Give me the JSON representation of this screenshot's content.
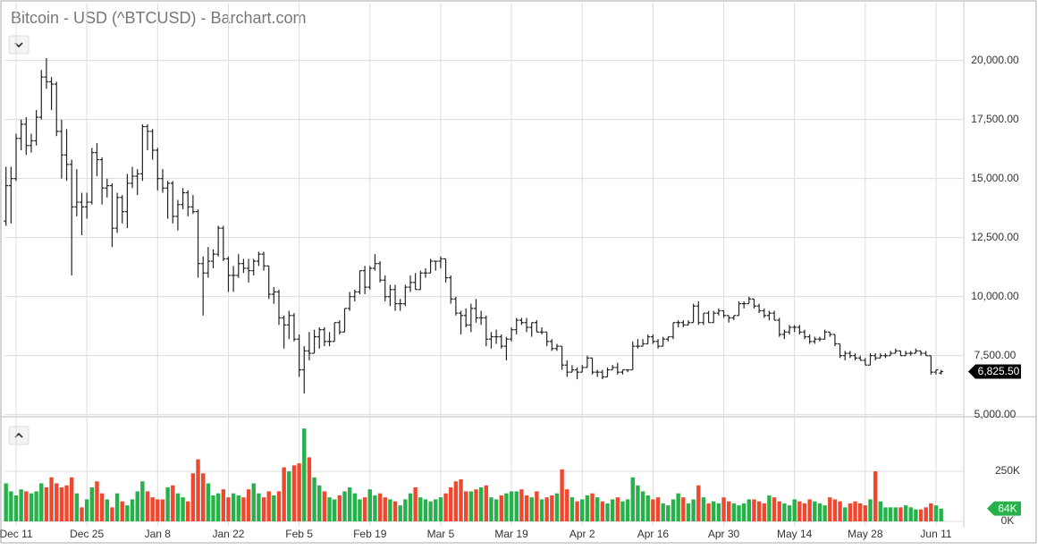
{
  "chart_data": {
    "type": "ohlc",
    "title": "Bitcoin - USD (^BTCUSD) - Barchart.com",
    "categories": [
      null,
      null,
      "Dec 11",
      null,
      null,
      null,
      null,
      null,
      null,
      null,
      null,
      null,
      null,
      null,
      null,
      null,
      "Dec 25",
      null,
      null,
      null,
      null,
      null,
      null,
      null,
      null,
      null,
      null,
      null,
      null,
      null,
      "Jan 8",
      null,
      null,
      null,
      null,
      null,
      null,
      null,
      null,
      null,
      null,
      null,
      null,
      null,
      "Jan 22",
      null,
      null,
      null,
      null,
      null,
      null,
      null,
      null,
      null,
      null,
      null,
      null,
      null,
      "Feb 5",
      null,
      null,
      null,
      null,
      null,
      null,
      null,
      null,
      null,
      null,
      null,
      null,
      null,
      "Feb 19",
      null,
      null,
      null,
      null,
      null,
      null,
      null,
      null,
      null,
      null,
      null,
      null,
      null,
      "Mar 5",
      null,
      null,
      null,
      null,
      null,
      null,
      null,
      null,
      null,
      null,
      null,
      null,
      null,
      "Mar 19",
      null,
      null,
      null,
      null,
      null,
      null,
      null,
      null,
      null,
      null,
      null,
      null,
      null,
      "Apr 2",
      null,
      null,
      null,
      null,
      null,
      null,
      null,
      null,
      null,
      null,
      null,
      null,
      null,
      "Apr 16",
      null,
      null,
      null,
      null,
      null,
      null,
      null,
      null,
      null,
      null,
      null,
      null,
      null,
      "Apr 30",
      null,
      null,
      null,
      null,
      null,
      null,
      null,
      null,
      null,
      null,
      null,
      null,
      null,
      "May 14",
      null,
      null,
      null,
      null,
      null,
      null,
      null,
      null,
      null,
      null,
      null,
      null,
      null,
      "May 28",
      null,
      null,
      null,
      null,
      null,
      null,
      null,
      null,
      null,
      null,
      null,
      null,
      null,
      "Jun 11",
      null
    ],
    "ohlc": [
      [
        13200,
        15500,
        13000,
        14700
      ],
      [
        14700,
        15500,
        13100,
        15000
      ],
      [
        15000,
        16900,
        14900,
        16700
      ],
      [
        16700,
        17500,
        16200,
        17300
      ],
      [
        17300,
        17600,
        16000,
        16400
      ],
      [
        16400,
        16900,
        16100,
        16600
      ],
      [
        16600,
        17900,
        16400,
        17600
      ],
      [
        17600,
        19600,
        17500,
        19300
      ],
      [
        19300,
        20100,
        18800,
        19100
      ],
      [
        19100,
        19300,
        17900,
        19000
      ],
      [
        19000,
        19100,
        16800,
        17000
      ],
      [
        17000,
        17500,
        15000,
        16000
      ],
      [
        16000,
        17100,
        14900,
        15600
      ],
      [
        15600,
        15800,
        10900,
        13800
      ],
      [
        13800,
        15400,
        13400,
        14000
      ],
      [
        14000,
        14400,
        12600,
        13800
      ],
      [
        13800,
        14400,
        13300,
        14000
      ],
      [
        14000,
        16300,
        13900,
        16100
      ],
      [
        16100,
        16500,
        15100,
        15800
      ],
      [
        15800,
        15900,
        13900,
        14600
      ],
      [
        14600,
        15000,
        14200,
        14700
      ],
      [
        14700,
        14800,
        12100,
        12900
      ],
      [
        12900,
        14400,
        12700,
        14200
      ],
      [
        14200,
        14300,
        13100,
        13600
      ],
      [
        13600,
        15200,
        12900,
        14800
      ],
      [
        14800,
        15500,
        14600,
        15100
      ],
      [
        15100,
        15400,
        14300,
        15200
      ],
      [
        15200,
        17300,
        14900,
        17200
      ],
      [
        17200,
        17300,
        16200,
        17000
      ],
      [
        17000,
        17100,
        15800,
        16200
      ],
      [
        16200,
        16300,
        14500,
        15000
      ],
      [
        15000,
        15400,
        14400,
        14600
      ],
      [
        14600,
        14900,
        13300,
        14800
      ],
      [
        14800,
        14900,
        13100,
        13400
      ],
      [
        13400,
        14100,
        12800,
        13900
      ],
      [
        13900,
        14600,
        13700,
        14400
      ],
      [
        14400,
        14500,
        13400,
        13800
      ],
      [
        13800,
        14300,
        13500,
        13600
      ],
      [
        13600,
        13700,
        10800,
        11400
      ],
      [
        11400,
        11700,
        9200,
        11000
      ],
      [
        11000,
        12100,
        10800,
        11500
      ],
      [
        11500,
        12000,
        11200,
        11800
      ],
      [
        11800,
        13000,
        11700,
        12900
      ],
      [
        12900,
        13000,
        11500,
        11600
      ],
      [
        11600,
        11700,
        10200,
        10900
      ],
      [
        10900,
        11300,
        10200,
        10900
      ],
      [
        10900,
        11800,
        10800,
        11400
      ],
      [
        11400,
        11600,
        11000,
        11200
      ],
      [
        11200,
        11600,
        10600,
        11100
      ],
      [
        11100,
        11600,
        10900,
        11500
      ],
      [
        11500,
        11900,
        11300,
        11800
      ],
      [
        11800,
        11900,
        11100,
        11300
      ],
      [
        11300,
        11300,
        9900,
        10100
      ],
      [
        10100,
        10400,
        9700,
        10200
      ],
      [
        10200,
        10300,
        8800,
        9100
      ],
      [
        9100,
        9200,
        7800,
        8800
      ],
      [
        8800,
        9400,
        8200,
        9200
      ],
      [
        9200,
        9300,
        8100,
        8200
      ],
      [
        8200,
        8400,
        6600,
        6900
      ],
      [
        6900,
        7900,
        5900,
        7700
      ],
      [
        7700,
        8500,
        7300,
        7600
      ],
      [
        7600,
        8600,
        7600,
        8300
      ],
      [
        8300,
        8700,
        7800,
        8600
      ],
      [
        8600,
        8700,
        7900,
        8100
      ],
      [
        8100,
        8500,
        7900,
        8100
      ],
      [
        8100,
        8900,
        8100,
        8900
      ],
      [
        8900,
        9000,
        8400,
        8500
      ],
      [
        8500,
        9500,
        8500,
        9500
      ],
      [
        9500,
        10200,
        9400,
        10000
      ],
      [
        10000,
        10300,
        9800,
        10200
      ],
      [
        10200,
        11100,
        10100,
        11100
      ],
      [
        11100,
        11300,
        10100,
        10400
      ],
      [
        10400,
        11300,
        10300,
        11200
      ],
      [
        11200,
        11800,
        11100,
        11400
      ],
      [
        11400,
        11500,
        10600,
        10700
      ],
      [
        10700,
        10900,
        9800,
        10000
      ],
      [
        10000,
        10500,
        9600,
        10300
      ],
      [
        10300,
        10500,
        9400,
        9700
      ],
      [
        9700,
        9900,
        9400,
        9700
      ],
      [
        9700,
        10500,
        9600,
        10400
      ],
      [
        10400,
        10900,
        10200,
        10600
      ],
      [
        10600,
        11000,
        10300,
        10300
      ],
      [
        10300,
        11100,
        10300,
        11000
      ],
      [
        11000,
        11200,
        10800,
        11000
      ],
      [
        11000,
        11600,
        11000,
        11500
      ],
      [
        11500,
        11500,
        11100,
        11500
      ],
      [
        11500,
        11700,
        11200,
        11600
      ],
      [
        11600,
        11600,
        10600,
        10800
      ],
      [
        10800,
        10900,
        9700,
        9900
      ],
      [
        9900,
        10000,
        9200,
        9300
      ],
      [
        9300,
        9400,
        8400,
        9200
      ],
      [
        9200,
        9500,
        8700,
        8800
      ],
      [
        8800,
        9700,
        8500,
        9500
      ],
      [
        9500,
        9900,
        8900,
        9100
      ],
      [
        9100,
        9400,
        8800,
        9100
      ],
      [
        9100,
        9200,
        7900,
        8200
      ],
      [
        8200,
        8500,
        7800,
        8300
      ],
      [
        8300,
        8600,
        8000,
        8300
      ],
      [
        8300,
        8400,
        7800,
        7900
      ],
      [
        7900,
        8300,
        7300,
        8200
      ],
      [
        8200,
        8700,
        8100,
        8600
      ],
      [
        8600,
        9100,
        8400,
        9000
      ],
      [
        9000,
        9100,
        8800,
        8900
      ],
      [
        8900,
        9100,
        8500,
        8700
      ],
      [
        8700,
        8900,
        8300,
        8900
      ],
      [
        8900,
        9000,
        8500,
        8500
      ],
      [
        8500,
        8700,
        8400,
        8500
      ],
      [
        8500,
        8500,
        7900,
        8100
      ],
      [
        8100,
        8200,
        7700,
        7800
      ],
      [
        7800,
        8000,
        7700,
        7900
      ],
      [
        7900,
        7900,
        6900,
        7100
      ],
      [
        7100,
        7300,
        6600,
        6800
      ],
      [
        6800,
        7100,
        6800,
        6900
      ],
      [
        6900,
        7000,
        6500,
        6800
      ],
      [
        6800,
        7100,
        6800,
        7000
      ],
      [
        7000,
        7500,
        7000,
        7400
      ],
      [
        7400,
        7400,
        6700,
        6800
      ],
      [
        6800,
        6900,
        6600,
        6800
      ],
      [
        6800,
        6900,
        6500,
        6600
      ],
      [
        6600,
        7000,
        6600,
        6900
      ],
      [
        6900,
        7100,
        6900,
        7000
      ],
      [
        7000,
        7200,
        6700,
        6800
      ],
      [
        6800,
        6900,
        6700,
        6900
      ],
      [
        6900,
        6900,
        6800,
        6900
      ],
      [
        6900,
        8100,
        6900,
        7900
      ],
      [
        7900,
        8200,
        7800,
        7900
      ],
      [
        7900,
        8200,
        7900,
        8000
      ],
      [
        8000,
        8400,
        8000,
        8300
      ],
      [
        8300,
        8400,
        8000,
        8100
      ],
      [
        8100,
        8200,
        7800,
        7900
      ],
      [
        7900,
        8300,
        7900,
        8200
      ],
      [
        8200,
        8300,
        8100,
        8300
      ],
      [
        8300,
        8900,
        8200,
        8900
      ],
      [
        8900,
        9000,
        8700,
        8900
      ],
      [
        8900,
        9000,
        8700,
        8800
      ],
      [
        8800,
        9000,
        8800,
        8900
      ],
      [
        8900,
        9700,
        8900,
        9600
      ],
      [
        9600,
        9800,
        8800,
        8900
      ],
      [
        8900,
        9300,
        8800,
        9300
      ],
      [
        9300,
        9400,
        8900,
        8900
      ],
      [
        8900,
        9400,
        8900,
        9300
      ],
      [
        9300,
        9500,
        9200,
        9400
      ],
      [
        9400,
        9400,
        9100,
        9200
      ],
      [
        9200,
        9200,
        8900,
        9100
      ],
      [
        9100,
        9200,
        9000,
        9200
      ],
      [
        9200,
        9800,
        9200,
        9700
      ],
      [
        9700,
        9800,
        9500,
        9700
      ],
      [
        9700,
        10000,
        9700,
        9900
      ],
      [
        9900,
        9900,
        9500,
        9600
      ],
      [
        9600,
        9700,
        9300,
        9400
      ],
      [
        9400,
        9500,
        9100,
        9200
      ],
      [
        9200,
        9400,
        9000,
        9300
      ],
      [
        9300,
        9400,
        9000,
        9000
      ],
      [
        9000,
        9100,
        8300,
        8400
      ],
      [
        8400,
        8600,
        8200,
        8500
      ],
      [
        8500,
        8800,
        8400,
        8700
      ],
      [
        8700,
        8800,
        8500,
        8700
      ],
      [
        8700,
        8800,
        8400,
        8500
      ],
      [
        8500,
        8600,
        8200,
        8300
      ],
      [
        8300,
        8400,
        8000,
        8100
      ],
      [
        8100,
        8300,
        8000,
        8200
      ],
      [
        8200,
        8300,
        8100,
        8200
      ],
      [
        8200,
        8600,
        8200,
        8500
      ],
      [
        8500,
        8500,
        8300,
        8400
      ],
      [
        8400,
        8400,
        7900,
        8000
      ],
      [
        8000,
        8000,
        7400,
        7500
      ],
      [
        7500,
        7700,
        7300,
        7600
      ],
      [
        7600,
        7700,
        7400,
        7500
      ],
      [
        7500,
        7600,
        7300,
        7400
      ],
      [
        7400,
        7500,
        7300,
        7300
      ],
      [
        7300,
        7400,
        7100,
        7100
      ],
      [
        7100,
        7600,
        7100,
        7500
      ],
      [
        7500,
        7600,
        7300,
        7400
      ],
      [
        7400,
        7600,
        7400,
        7500
      ],
      [
        7500,
        7600,
        7400,
        7500
      ],
      [
        7500,
        7700,
        7500,
        7600
      ],
      [
        7600,
        7800,
        7600,
        7700
      ],
      [
        7700,
        7700,
        7500,
        7500
      ],
      [
        7500,
        7700,
        7500,
        7600
      ],
      [
        7600,
        7700,
        7500,
        7600
      ],
      [
        7600,
        7800,
        7600,
        7700
      ],
      [
        7700,
        7700,
        7500,
        7600
      ],
      [
        7600,
        7700,
        7500,
        7500
      ],
      [
        7500,
        7500,
        6700,
        6800
      ],
      [
        6800,
        6900,
        6700,
        6900
      ],
      [
        6760,
        6900,
        6700,
        6825.5
      ]
    ],
    "volume": [
      190000,
      150000,
      130000,
      160000,
      150000,
      140000,
      150000,
      190000,
      170000,
      220000,
      190000,
      170000,
      180000,
      220000,
      140000,
      70000,
      110000,
      170000,
      200000,
      140000,
      110000,
      70000,
      140000,
      100000,
      80000,
      110000,
      150000,
      200000,
      150000,
      120000,
      110000,
      110000,
      170000,
      180000,
      140000,
      120000,
      100000,
      240000,
      310000,
      240000,
      190000,
      130000,
      140000,
      160000,
      120000,
      140000,
      130000,
      120000,
      160000,
      190000,
      140000,
      120000,
      150000,
      130000,
      150000,
      270000,
      250000,
      280000,
      290000,
      464000,
      320000,
      220000,
      180000,
      150000,
      120000,
      110000,
      130000,
      150000,
      170000,
      140000,
      110000,
      120000,
      160000,
      130000,
      140000,
      120000,
      110000,
      100000,
      80000,
      110000,
      140000,
      170000,
      120000,
      110000,
      100000,
      110000,
      120000,
      140000,
      170000,
      200000,
      210000,
      150000,
      150000,
      160000,
      170000,
      180000,
      120000,
      110000,
      130000,
      140000,
      150000,
      150000,
      160000,
      130000,
      120000,
      150000,
      110000,
      120000,
      130000,
      140000,
      260000,
      160000,
      120000,
      100000,
      110000,
      130000,
      140000,
      120000,
      100000,
      90000,
      110000,
      120000,
      100000,
      110000,
      220000,
      180000,
      150000,
      130000,
      110000,
      120000,
      90000,
      80000,
      110000,
      140000,
      120000,
      90000,
      110000,
      180000,
      120000,
      90000,
      100000,
      90000,
      120000,
      100000,
      90000,
      80000,
      90000,
      110000,
      110000,
      100000,
      90000,
      130000,
      120000,
      100000,
      90000,
      80000,
      110000,
      100000,
      90000,
      110000,
      100000,
      90000,
      80000,
      120000,
      110000,
      100000,
      70000,
      90000,
      100000,
      90000,
      80000,
      110000,
      250000,
      100000,
      70000,
      70000,
      70000,
      70000,
      80000,
      70000,
      60000,
      60000,
      70000,
      90000,
      80000,
      64000
    ],
    "ylim": [
      4950,
      22450
    ],
    "yticks": [
      {
        "value": 5000,
        "label": "5,000.00"
      },
      {
        "value": 7500,
        "label": "7,500.00"
      },
      {
        "value": 10000,
        "label": "10,000.00"
      },
      {
        "value": 12500,
        "label": "12,500.00"
      },
      {
        "value": 15000,
        "label": "15,000.00"
      },
      {
        "value": 17500,
        "label": "17,500.00"
      },
      {
        "value": 20000,
        "label": "20,000.00"
      }
    ],
    "volume_ylim": [
      0,
      505000
    ],
    "volume_yticks": [
      {
        "value": 0,
        "label": "0K"
      },
      {
        "value": 250000,
        "label": "250K"
      }
    ],
    "last_price_label": "6,825.50",
    "last_volume_label": "64K",
    "bar_color": "#222222",
    "up_color": "#26b14a",
    "down_color": "#f0472f",
    "label_color": "#000000",
    "grid": true
  }
}
